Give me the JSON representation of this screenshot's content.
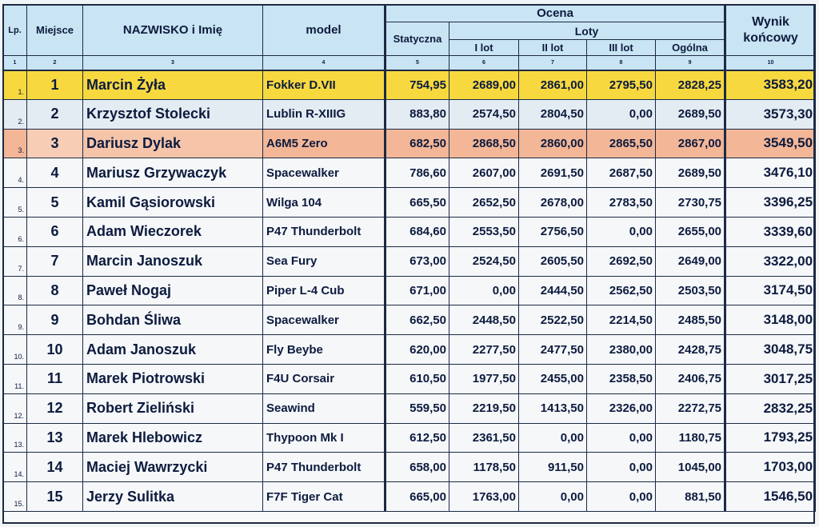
{
  "header": {
    "lp": "Lp.",
    "miejsce": "Miejsce",
    "nazwisko": "NAZWISKO i Imię",
    "model": "model",
    "ocena": "Ocena",
    "statyczna": "Statyczna",
    "loty": "Loty",
    "lot1": "I lot",
    "lot2": "II lot",
    "lot3": "III lot",
    "ogolna": "Ogólna",
    "wynik": "Wynik końcowy",
    "indices": [
      "1",
      "2",
      "3",
      "4",
      "5",
      "6",
      "7",
      "8",
      "9",
      "10"
    ]
  },
  "rows": [
    {
      "lp": "1.",
      "miejsce": "1",
      "name": "Marcin Żyła",
      "model": "Fokker D.VII",
      "stat": "754,95",
      "l1": "2689,00",
      "l2": "2861,00",
      "l3": "2795,50",
      "og": "2828,25",
      "wynik": "3583,20"
    },
    {
      "lp": "2.",
      "miejsce": "2",
      "name": "Krzysztof Stolecki",
      "model": "Lublin R-XIIIG",
      "stat": "883,80",
      "l1": "2574,50",
      "l2": "2804,50",
      "l3": "0,00",
      "og": "2689,50",
      "wynik": "3573,30"
    },
    {
      "lp": "3.",
      "miejsce": "3",
      "name": "Dariusz Dylak",
      "model": "A6M5 Zero",
      "stat": "682,50",
      "l1": "2868,50",
      "l2": "2860,00",
      "l3": "2865,50",
      "og": "2867,00",
      "wynik": "3549,50"
    },
    {
      "lp": "4.",
      "miejsce": "4",
      "name": "Mariusz Grzywaczyk",
      "model": "Spacewalker",
      "stat": "786,60",
      "l1": "2607,00",
      "l2": "2691,50",
      "l3": "2687,50",
      "og": "2689,50",
      "wynik": "3476,10"
    },
    {
      "lp": "5.",
      "miejsce": "5",
      "name": "Kamil Gąsiorowski",
      "model": "Wilga 104",
      "stat": "665,50",
      "l1": "2652,50",
      "l2": "2678,00",
      "l3": "2783,50",
      "og": "2730,75",
      "wynik": "3396,25"
    },
    {
      "lp": "6.",
      "miejsce": "6",
      "name": "Adam Wieczorek",
      "model": "P47 Thunderbolt",
      "stat": "684,60",
      "l1": "2553,50",
      "l2": "2756,50",
      "l3": "0,00",
      "og": "2655,00",
      "wynik": "3339,60"
    },
    {
      "lp": "7.",
      "miejsce": "7",
      "name": "Marcin Janoszuk",
      "model": "Sea Fury",
      "stat": "673,00",
      "l1": "2524,50",
      "l2": "2605,50",
      "l3": "2692,50",
      "og": "2649,00",
      "wynik": "3322,00"
    },
    {
      "lp": "8.",
      "miejsce": "8",
      "name": "Paweł Nogaj",
      "model": "Piper L-4 Cub",
      "stat": "671,00",
      "l1": "0,00",
      "l2": "2444,50",
      "l3": "2562,50",
      "og": "2503,50",
      "wynik": "3174,50"
    },
    {
      "lp": "9.",
      "miejsce": "9",
      "name": "Bohdan Śliwa",
      "model": "Spacewalker",
      "stat": "662,50",
      "l1": "2448,50",
      "l2": "2522,50",
      "l3": "2214,50",
      "og": "2485,50",
      "wynik": "3148,00"
    },
    {
      "lp": "10.",
      "miejsce": "10",
      "name": "Adam Janoszuk",
      "model": "Fly Beybe",
      "stat": "620,00",
      "l1": "2277,50",
      "l2": "2477,50",
      "l3": "2380,00",
      "og": "2428,75",
      "wynik": "3048,75"
    },
    {
      "lp": "11.",
      "miejsce": "11",
      "name": "Marek Piotrowski",
      "model": "F4U Corsair",
      "stat": "610,50",
      "l1": "1977,50",
      "l2": "2455,00",
      "l3": "2358,50",
      "og": "2406,75",
      "wynik": "3017,25"
    },
    {
      "lp": "12.",
      "miejsce": "12",
      "name": "Robert Zieliński",
      "model": "Seawind",
      "stat": "559,50",
      "l1": "2219,50",
      "l2": "1413,50",
      "l3": "2326,00",
      "og": "2272,75",
      "wynik": "2832,25"
    },
    {
      "lp": "13.",
      "miejsce": "13",
      "name": "Marek Hlebowicz",
      "model": "Thypoon Mk I",
      "stat": "612,50",
      "l1": "2361,50",
      "l2": "0,00",
      "l3": "0,00",
      "og": "1180,75",
      "wynik": "1793,25"
    },
    {
      "lp": "14.",
      "miejsce": "14",
      "name": "Maciej Wawrzycki",
      "model": "P47 Thunderbolt",
      "stat": "658,00",
      "l1": "1178,50",
      "l2": "911,50",
      "l3": "0,00",
      "og": "1045,00",
      "wynik": "1703,00"
    },
    {
      "lp": "15.",
      "miejsce": "15",
      "name": "Jerzy Sulitka",
      "model": "F7F Tiger Cat",
      "stat": "665,00",
      "l1": "1763,00",
      "l2": "0,00",
      "l3": "0,00",
      "og": "881,50",
      "wynik": "1546,50"
    }
  ]
}
